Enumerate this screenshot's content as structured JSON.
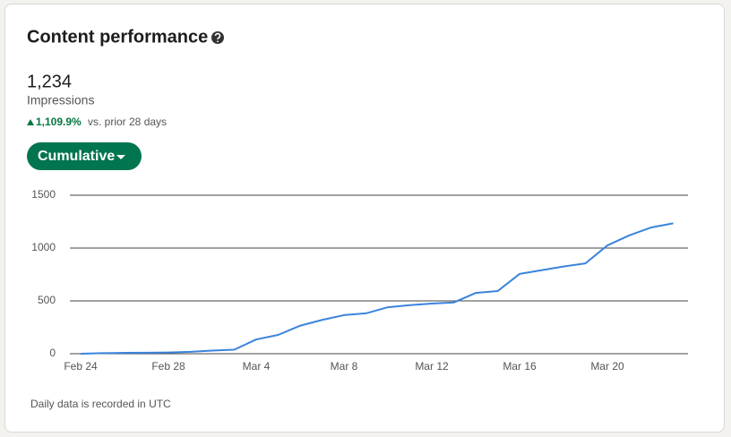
{
  "header": {
    "title": "Content performance",
    "metric_value": "1,234",
    "metric_label": "Impressions",
    "change": "1,109.9%",
    "change_note": "vs. prior 28 days",
    "button": "Cumulative"
  },
  "chart_data": {
    "type": "line",
    "color": "#3a84dc",
    "categories": [
      "Feb 24",
      null,
      null,
      null,
      "Feb 28",
      null,
      null,
      null,
      "Mar 4",
      null,
      null,
      null,
      "Mar 8",
      null,
      null,
      null,
      "Mar 12",
      null,
      null,
      null,
      "Mar 16",
      null,
      null,
      null,
      "Mar 20",
      null,
      null,
      null
    ],
    "values": [
      0,
      5,
      8,
      10,
      12,
      18,
      30,
      38,
      135,
      178,
      265,
      320,
      365,
      382,
      440,
      460,
      475,
      485,
      575,
      593,
      755,
      790,
      825,
      855,
      1025,
      1120,
      1195,
      1234
    ],
    "ylim": [
      0,
      1500
    ],
    "yticks": [
      0,
      500,
      1000,
      1500
    ],
    "grid": true
  },
  "footnote": "Daily data is recorded in UTC"
}
